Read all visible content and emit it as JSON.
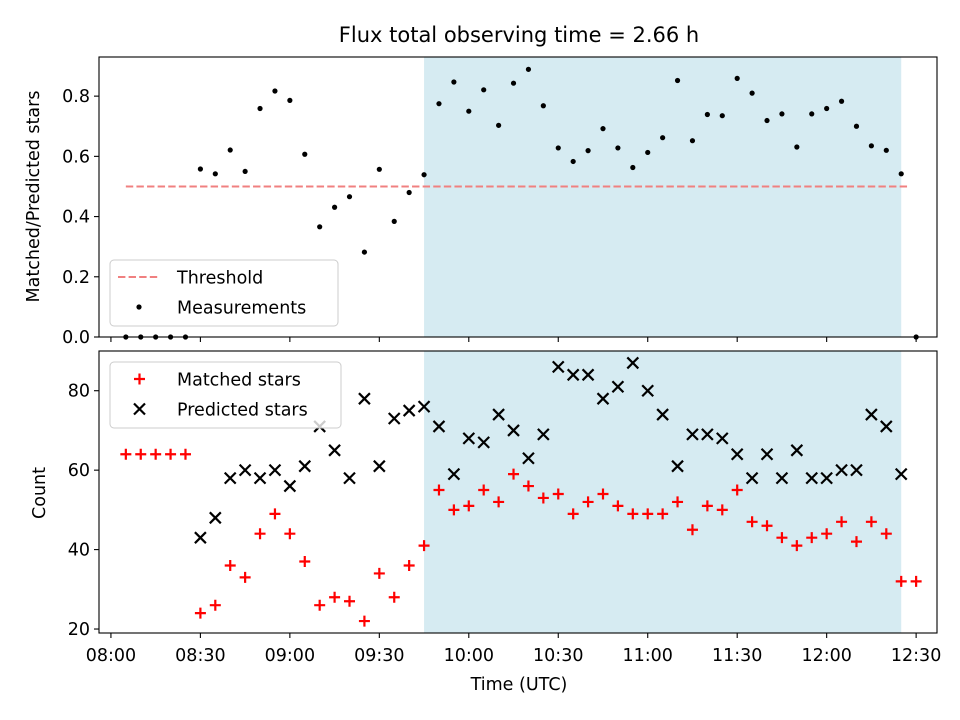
{
  "chart_data": [
    {
      "type": "scatter",
      "title": "Flux total observing time = 2.66 h",
      "xlabel": "",
      "ylabel": "Matched/Predicted stars",
      "x_unit": "time of day (UTC), HH:MM",
      "xlim": [
        "07:56",
        "12:37"
      ],
      "ylim": [
        0,
        0.93
      ],
      "y_ticks": [
        "0.0",
        "0.2",
        "0.4",
        "0.6",
        "0.8"
      ],
      "x_ticks_labeled": false,
      "shaded_span": {
        "from": "09:45",
        "to": "12:25",
        "color": "#add8e6"
      },
      "threshold": {
        "name": "Threshold",
        "value": 0.5,
        "from": "08:05",
        "to": "12:27",
        "color": "#f08080",
        "style": "dashed"
      },
      "series": [
        {
          "name": "Measurements",
          "color": "#000000",
          "marker": "dot",
          "points": [
            [
              "08:05",
              0.0
            ],
            [
              "08:10",
              0.0
            ],
            [
              "08:15",
              0.0
            ],
            [
              "08:20",
              0.0
            ],
            [
              "08:25",
              0.0
            ],
            [
              "08:30",
              0.558
            ],
            [
              "08:35",
              0.542
            ],
            [
              "08:40",
              0.621
            ],
            [
              "08:45",
              0.55
            ],
            [
              "08:50",
              0.759
            ],
            [
              "08:55",
              0.817
            ],
            [
              "09:00",
              0.786
            ],
            [
              "09:05",
              0.607
            ],
            [
              "09:10",
              0.366
            ],
            [
              "09:15",
              0.431
            ],
            [
              "09:20",
              0.466
            ],
            [
              "09:25",
              0.282
            ],
            [
              "09:30",
              0.557
            ],
            [
              "09:35",
              0.384
            ],
            [
              "09:40",
              0.48
            ],
            [
              "09:45",
              0.539
            ],
            [
              "09:50",
              0.775
            ],
            [
              "09:55",
              0.847
            ],
            [
              "10:00",
              0.75
            ],
            [
              "10:05",
              0.821
            ],
            [
              "10:10",
              0.703
            ],
            [
              "10:15",
              0.843
            ],
            [
              "10:20",
              0.889
            ],
            [
              "10:25",
              0.768
            ],
            [
              "10:30",
              0.628
            ],
            [
              "10:35",
              0.583
            ],
            [
              "10:40",
              0.619
            ],
            [
              "10:45",
              0.692
            ],
            [
              "10:50",
              0.628
            ],
            [
              "10:55",
              0.563
            ],
            [
              "11:00",
              0.613
            ],
            [
              "11:05",
              0.662
            ],
            [
              "11:10",
              0.852
            ],
            [
              "11:15",
              0.652
            ],
            [
              "11:20",
              0.739
            ],
            [
              "11:25",
              0.735
            ],
            [
              "11:30",
              0.859
            ],
            [
              "11:35",
              0.81
            ],
            [
              "11:40",
              0.719
            ],
            [
              "11:45",
              0.741
            ],
            [
              "11:50",
              0.631
            ],
            [
              "11:55",
              0.741
            ],
            [
              "12:00",
              0.759
            ],
            [
              "12:05",
              0.783
            ],
            [
              "12:10",
              0.7
            ],
            [
              "12:15",
              0.635
            ],
            [
              "12:20",
              0.62
            ],
            [
              "12:25",
              0.542
            ],
            [
              "12:30",
              0.0
            ]
          ]
        }
      ],
      "legend": {
        "position": "lower-left",
        "entries": [
          "Threshold",
          "Measurements"
        ]
      }
    },
    {
      "type": "scatter",
      "title": "",
      "xlabel": "Time (UTC)",
      "ylabel": "Count",
      "x_unit": "time of day (UTC), HH:MM",
      "xlim": [
        "07:56",
        "12:37"
      ],
      "ylim": [
        19,
        90
      ],
      "x_ticks": [
        "08:00",
        "08:30",
        "09:00",
        "09:30",
        "10:00",
        "10:30",
        "11:00",
        "11:30",
        "12:00",
        "12:30"
      ],
      "y_ticks": [
        "20",
        "40",
        "60",
        "80"
      ],
      "shaded_span": {
        "from": "09:45",
        "to": "12:25",
        "color": "#add8e6"
      },
      "series": [
        {
          "name": "Matched stars",
          "color": "#ff0000",
          "marker": "plus",
          "points": [
            [
              "08:05",
              64
            ],
            [
              "08:10",
              64
            ],
            [
              "08:15",
              64
            ],
            [
              "08:20",
              64
            ],
            [
              "08:25",
              64
            ],
            [
              "08:30",
              24
            ],
            [
              "08:35",
              26
            ],
            [
              "08:40",
              36
            ],
            [
              "08:45",
              33
            ],
            [
              "08:50",
              44
            ],
            [
              "08:55",
              49
            ],
            [
              "09:00",
              44
            ],
            [
              "09:05",
              37
            ],
            [
              "09:10",
              26
            ],
            [
              "09:15",
              28
            ],
            [
              "09:20",
              27
            ],
            [
              "09:25",
              22
            ],
            [
              "09:30",
              34
            ],
            [
              "09:35",
              28
            ],
            [
              "09:40",
              36
            ],
            [
              "09:45",
              41
            ],
            [
              "09:50",
              55
            ],
            [
              "09:55",
              50
            ],
            [
              "10:00",
              51
            ],
            [
              "10:05",
              55
            ],
            [
              "10:10",
              52
            ],
            [
              "10:15",
              59
            ],
            [
              "10:20",
              56
            ],
            [
              "10:25",
              53
            ],
            [
              "10:30",
              54
            ],
            [
              "10:35",
              49
            ],
            [
              "10:40",
              52
            ],
            [
              "10:45",
              54
            ],
            [
              "10:50",
              51
            ],
            [
              "10:55",
              49
            ],
            [
              "11:00",
              49
            ],
            [
              "11:05",
              49
            ],
            [
              "11:10",
              52
            ],
            [
              "11:15",
              45
            ],
            [
              "11:20",
              51
            ],
            [
              "11:25",
              50
            ],
            [
              "11:30",
              55
            ],
            [
              "11:35",
              47
            ],
            [
              "11:40",
              46
            ],
            [
              "11:45",
              43
            ],
            [
              "11:50",
              41
            ],
            [
              "11:55",
              43
            ],
            [
              "12:00",
              44
            ],
            [
              "12:05",
              47
            ],
            [
              "12:10",
              42
            ],
            [
              "12:15",
              47
            ],
            [
              "12:20",
              44
            ],
            [
              "12:25",
              32
            ],
            [
              "12:30",
              32
            ]
          ]
        },
        {
          "name": "Predicted stars",
          "color": "#000000",
          "marker": "x",
          "points": [
            [
              "08:30",
              43
            ],
            [
              "08:35",
              48
            ],
            [
              "08:40",
              58
            ],
            [
              "08:45",
              60
            ],
            [
              "08:50",
              58
            ],
            [
              "08:55",
              60
            ],
            [
              "09:00",
              56
            ],
            [
              "09:05",
              61
            ],
            [
              "09:10",
              71
            ],
            [
              "09:15",
              65
            ],
            [
              "09:20",
              58
            ],
            [
              "09:25",
              78
            ],
            [
              "09:30",
              61
            ],
            [
              "09:35",
              73
            ],
            [
              "09:40",
              75
            ],
            [
              "09:45",
              76
            ],
            [
              "09:50",
              71
            ],
            [
              "09:55",
              59
            ],
            [
              "10:00",
              68
            ],
            [
              "10:05",
              67
            ],
            [
              "10:10",
              74
            ],
            [
              "10:15",
              70
            ],
            [
              "10:20",
              63
            ],
            [
              "10:25",
              69
            ],
            [
              "10:30",
              86
            ],
            [
              "10:35",
              84
            ],
            [
              "10:40",
              84
            ],
            [
              "10:45",
              78
            ],
            [
              "10:50",
              81
            ],
            [
              "10:55",
              87
            ],
            [
              "11:00",
              80
            ],
            [
              "11:05",
              74
            ],
            [
              "11:10",
              61
            ],
            [
              "11:15",
              69
            ],
            [
              "11:20",
              69
            ],
            [
              "11:25",
              68
            ],
            [
              "11:30",
              64
            ],
            [
              "11:35",
              58
            ],
            [
              "11:40",
              64
            ],
            [
              "11:45",
              58
            ],
            [
              "11:50",
              65
            ],
            [
              "11:55",
              58
            ],
            [
              "12:00",
              58
            ],
            [
              "12:05",
              60
            ],
            [
              "12:10",
              60
            ],
            [
              "12:15",
              74
            ],
            [
              "12:20",
              71
            ],
            [
              "12:25",
              59
            ]
          ]
        }
      ],
      "legend": {
        "position": "upper-left",
        "entries": [
          "Matched stars",
          "Predicted stars"
        ]
      }
    }
  ]
}
